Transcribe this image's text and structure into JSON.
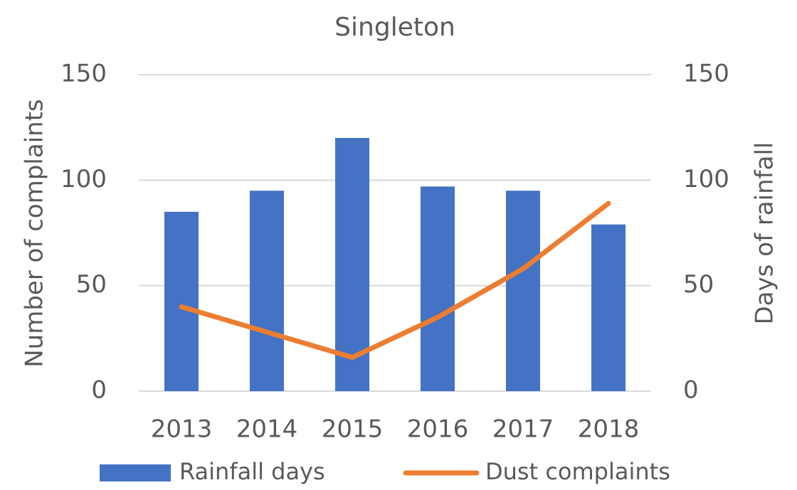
{
  "chart_data": {
    "type": "bar",
    "title": "Singleton",
    "y_label": "Number of complaints",
    "y2_label": "Days of rainfall",
    "categories": [
      "2013",
      "2014",
      "2015",
      "2016",
      "2017",
      "2018"
    ],
    "series": [
      {
        "name": "Rainfall days",
        "type": "bar",
        "axis": "y2",
        "color": "#4472c4",
        "values": [
          85,
          95,
          120,
          97,
          95,
          79
        ]
      },
      {
        "name": "Dust complaints",
        "type": "line",
        "axis": "y",
        "color": "#ed7d31",
        "values": [
          40,
          28,
          16,
          35,
          58,
          89
        ]
      }
    ],
    "ylim": [
      0,
      150
    ],
    "yticks": [
      0,
      50,
      100,
      150
    ],
    "y2lim": [
      0,
      150
    ],
    "y2ticks": [
      0,
      50,
      100,
      150
    ],
    "grid": true
  }
}
